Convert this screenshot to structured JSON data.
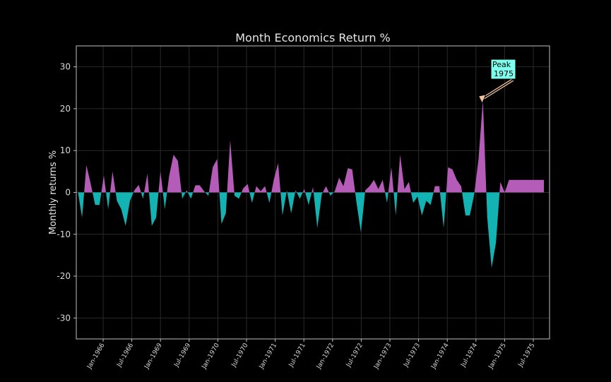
{
  "chart_data": {
    "type": "area",
    "title": "Month Economics Return %",
    "xlabel": "",
    "ylabel": "Monthly returns %",
    "ylim": [
      -35,
      35
    ],
    "yticks": [
      -30,
      -20,
      -10,
      0,
      10,
      20,
      30
    ],
    "grid": true,
    "xtick_labels": [
      "Jan-1966",
      "Jul-1966",
      "Jan-1969",
      "Jul-1969",
      "Jan-1970",
      "Jul-1970",
      "Jan-1971",
      "Jul-1971",
      "Jan-1972",
      "Jul-1972",
      "Jan-1973",
      "Jul-1973",
      "Jan-1974",
      "Jul-1974",
      "Jan-1975",
      "Jul-1975"
    ],
    "x_start": "1967-01",
    "x_end": "1975-12",
    "positive_color": "#b55bb8",
    "negative_color": "#14b3b3",
    "series": [
      {
        "x": [
          "1967-01",
          "1967-02",
          "1967-03",
          "1967-04",
          "1967-05",
          "1967-06",
          "1967-07",
          "1967-08",
          "1967-09",
          "1967-10",
          "1967-11",
          "1967-12",
          "1968-01",
          "1968-02",
          "1968-03",
          "1968-04",
          "1968-05",
          "1968-06",
          "1968-07",
          "1968-08",
          "1968-09",
          "1968-10",
          "1968-11",
          "1968-12",
          "1969-01",
          "1969-02",
          "1969-03",
          "1969-04",
          "1969-05",
          "1969-06",
          "1969-07",
          "1969-08",
          "1969-09",
          "1969-10",
          "1969-11",
          "1969-12",
          "1970-01",
          "1970-02",
          "1970-03",
          "1970-04",
          "1970-05",
          "1970-06",
          "1970-07",
          "1970-08",
          "1970-09",
          "1970-10",
          "1970-11",
          "1970-12",
          "1971-01",
          "1971-02",
          "1971-03",
          "1971-04",
          "1971-05",
          "1971-06",
          "1971-07",
          "1971-08",
          "1971-09",
          "1971-10",
          "1971-11",
          "1971-12",
          "1972-01",
          "1972-02",
          "1972-03",
          "1972-04",
          "1972-05",
          "1972-06",
          "1972-07",
          "1972-08",
          "1972-09",
          "1972-10",
          "1972-11",
          "1972-12",
          "1973-01",
          "1973-02",
          "1973-03",
          "1973-04",
          "1973-05",
          "1973-06",
          "1973-07",
          "1973-08",
          "1973-09",
          "1973-10",
          "1973-11",
          "1973-12",
          "1974-01",
          "1974-02",
          "1974-03",
          "1974-04",
          "1974-05",
          "1974-06",
          "1974-07",
          "1974-08",
          "1974-09",
          "1974-10",
          "1974-11",
          "1974-12",
          "1975-01",
          "1975-02",
          "1975-03",
          "1975-04",
          "1975-05",
          "1975-06",
          "1975-07",
          "1975-08",
          "1975-09",
          "1975-10",
          "1975-11",
          "1975-12"
        ],
        "values": [
          0.5,
          -6,
          6.5,
          2,
          -3,
          -3,
          4,
          -4,
          5,
          -2,
          -4,
          -8,
          -2,
          0.5,
          1.8,
          -1.5,
          4.5,
          -8,
          -6,
          5,
          -4,
          4,
          9,
          7.5,
          -1.5,
          0.5,
          -1.5,
          1.7,
          1.7,
          0.3,
          -0.8,
          6,
          8,
          -7.5,
          -5,
          12.5,
          -0.8,
          -1.5,
          1,
          2,
          -2.5,
          1.5,
          0.3,
          1.5,
          -2.5,
          3,
          7,
          -5.5,
          0.5,
          -5,
          0.5,
          -1.5,
          0.8,
          -3,
          1.3,
          -8.5,
          -0.5,
          1.5,
          -0.8,
          0.3,
          3.5,
          1.5,
          5.8,
          5.5,
          -2.5,
          -9.5,
          0.5,
          1.5,
          3,
          0.8,
          3,
          -2.5,
          6,
          -5.5,
          9,
          0.8,
          2.5,
          -2.5,
          -1,
          -5.5,
          -2,
          -3,
          1.5,
          1.5,
          -8.5,
          6,
          5.5,
          3,
          1.5,
          -5.5,
          -5.5,
          -0.5,
          8,
          22,
          -6,
          -18,
          -12,
          2.5,
          0,
          3,
          3,
          3,
          3,
          3,
          3,
          3,
          3,
          3
        ]
      }
    ],
    "annotations": [
      {
        "text_line1": "Peak",
        "text_line2": "1975",
        "x": "1974-10",
        "y": 22,
        "box_color": "#7fffee",
        "arrow_color": "#f2c4a0"
      }
    ]
  }
}
